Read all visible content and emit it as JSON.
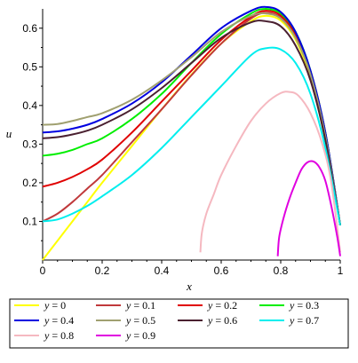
{
  "chart_data": {
    "type": "line",
    "xlabel": "x",
    "ylabel": "u",
    "xlim": [
      0,
      1
    ],
    "ylim": [
      0,
      0.65
    ],
    "x_ticks": [
      "0",
      "0.2",
      "0.4",
      "0.6",
      "0.8",
      "1"
    ],
    "y_ticks": [
      "0.1",
      "0.2",
      "0.3",
      "0.4",
      "0.5",
      "0.6"
    ],
    "legend_position": "bottom",
    "series": [
      {
        "name": "y = 0",
        "param": "0",
        "color": "#ffff00",
        "x": [
          0,
          0.05,
          0.1,
          0.15,
          0.2,
          0.3,
          0.4,
          0.5,
          0.6,
          0.7,
          0.75,
          0.8,
          0.85,
          0.9,
          0.95,
          1.0
        ],
        "y": [
          0.0,
          0.05,
          0.1,
          0.15,
          0.2,
          0.295,
          0.39,
          0.48,
          0.56,
          0.618,
          0.632,
          0.62,
          0.57,
          0.47,
          0.31,
          0.09
        ]
      },
      {
        "name": "y = 0.1",
        "param": "0.1",
        "color": "#c0393b",
        "x": [
          0,
          0.05,
          0.1,
          0.15,
          0.2,
          0.3,
          0.4,
          0.5,
          0.6,
          0.7,
          0.75,
          0.8,
          0.85,
          0.9,
          0.95,
          1.0
        ],
        "y": [
          0.1,
          0.12,
          0.15,
          0.185,
          0.22,
          0.305,
          0.39,
          0.478,
          0.56,
          0.625,
          0.64,
          0.628,
          0.58,
          0.48,
          0.32,
          0.09
        ]
      },
      {
        "name": "y = 0.2",
        "param": "0.2",
        "color": "#e00000",
        "x": [
          0,
          0.05,
          0.1,
          0.15,
          0.2,
          0.3,
          0.4,
          0.5,
          0.6,
          0.7,
          0.75,
          0.8,
          0.85,
          0.9,
          0.95,
          1.0
        ],
        "y": [
          0.19,
          0.2,
          0.215,
          0.235,
          0.26,
          0.33,
          0.41,
          0.49,
          0.57,
          0.63,
          0.645,
          0.633,
          0.585,
          0.49,
          0.33,
          0.09
        ]
      },
      {
        "name": "y = 0.3",
        "param": "0.3",
        "color": "#00ee00",
        "x": [
          0,
          0.05,
          0.1,
          0.15,
          0.2,
          0.3,
          0.4,
          0.5,
          0.6,
          0.7,
          0.75,
          0.8,
          0.85,
          0.9,
          0.95,
          1.0
        ],
        "y": [
          0.27,
          0.275,
          0.285,
          0.3,
          0.315,
          0.365,
          0.43,
          0.51,
          0.585,
          0.638,
          0.65,
          0.638,
          0.59,
          0.49,
          0.33,
          0.09
        ]
      },
      {
        "name": "y = 0.4",
        "param": "0.4",
        "color": "#0000e0",
        "x": [
          0,
          0.05,
          0.1,
          0.15,
          0.2,
          0.3,
          0.4,
          0.5,
          0.6,
          0.7,
          0.75,
          0.8,
          0.85,
          0.9,
          0.95,
          1.0
        ],
        "y": [
          0.33,
          0.333,
          0.34,
          0.35,
          0.365,
          0.405,
          0.46,
          0.53,
          0.6,
          0.645,
          0.655,
          0.642,
          0.59,
          0.49,
          0.33,
          0.09
        ]
      },
      {
        "name": "y = 0.5",
        "param": "0.5",
        "color": "#a0a070",
        "x": [
          0,
          0.05,
          0.1,
          0.15,
          0.2,
          0.3,
          0.4,
          0.5,
          0.6,
          0.7,
          0.75,
          0.8,
          0.85,
          0.9,
          0.95,
          1.0
        ],
        "y": [
          0.35,
          0.352,
          0.36,
          0.37,
          0.38,
          0.415,
          0.465,
          0.525,
          0.59,
          0.632,
          0.638,
          0.625,
          0.575,
          0.48,
          0.32,
          0.09
        ]
      },
      {
        "name": "y = 0.6",
        "param": "0.6",
        "color": "#4a2030",
        "x": [
          0,
          0.05,
          0.1,
          0.15,
          0.2,
          0.3,
          0.4,
          0.5,
          0.6,
          0.7,
          0.75,
          0.8,
          0.85,
          0.9,
          0.95,
          1.0
        ],
        "y": [
          0.315,
          0.318,
          0.325,
          0.335,
          0.35,
          0.39,
          0.445,
          0.51,
          0.575,
          0.615,
          0.618,
          0.605,
          0.555,
          0.465,
          0.31,
          0.09
        ]
      },
      {
        "name": "y = 0.7",
        "param": "0.7",
        "color": "#00eeee",
        "x": [
          0,
          0.05,
          0.1,
          0.15,
          0.2,
          0.3,
          0.4,
          0.5,
          0.6,
          0.7,
          0.75,
          0.8,
          0.85,
          0.9,
          0.95,
          1.0
        ],
        "y": [
          0.1,
          0.105,
          0.12,
          0.14,
          0.165,
          0.22,
          0.29,
          0.37,
          0.45,
          0.53,
          0.548,
          0.545,
          0.51,
          0.43,
          0.29,
          0.09
        ]
      },
      {
        "name": "y = 0.8",
        "param": "0.8",
        "color": "#f5b8c0",
        "x": [
          0.53,
          0.535,
          0.55,
          0.575,
          0.6,
          0.65,
          0.7,
          0.75,
          0.8,
          0.83,
          0.86,
          0.9,
          0.94,
          0.97,
          1.0
        ],
        "y": [
          0.02,
          0.07,
          0.12,
          0.17,
          0.22,
          0.295,
          0.36,
          0.405,
          0.432,
          0.435,
          0.425,
          0.38,
          0.3,
          0.2,
          0.02
        ]
      },
      {
        "name": "y = 0.9",
        "param": "0.9",
        "color": "#e000e0",
        "x": [
          0.79,
          0.795,
          0.81,
          0.83,
          0.85,
          0.87,
          0.89,
          0.91,
          0.93,
          0.95,
          0.97,
          0.99,
          1.0
        ],
        "y": [
          0.01,
          0.06,
          0.11,
          0.16,
          0.2,
          0.235,
          0.253,
          0.255,
          0.24,
          0.205,
          0.14,
          0.06,
          0.01
        ]
      }
    ]
  }
}
